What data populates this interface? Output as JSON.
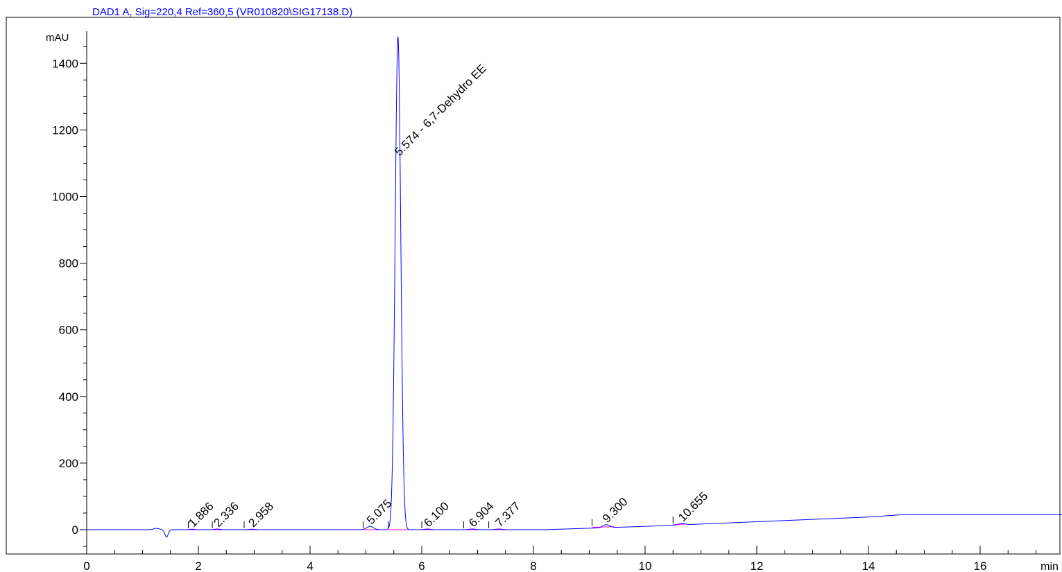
{
  "chart_data": {
    "type": "line",
    "title": "DAD1 A, Sig=220,4 Ref=360,5 (VR010820\\SIG17138.D)",
    "ylabel": "mAU",
    "xlabel": "min",
    "xlim": [
      0,
      17.5
    ],
    "ylim": [
      -65,
      1500
    ],
    "x_ticks": [
      0,
      2,
      4,
      6,
      8,
      10,
      12,
      14,
      16
    ],
    "y_ticks": [
      0,
      200,
      400,
      600,
      800,
      1000,
      1200,
      1400
    ],
    "series": [
      {
        "color": "#0000ff",
        "baseline": [
          [
            0,
            0
          ],
          [
            1.2,
            0
          ],
          [
            8.2,
            0
          ],
          [
            10,
            10
          ],
          [
            12,
            24
          ],
          [
            14,
            38
          ],
          [
            14.6,
            45
          ],
          [
            17.5,
            45
          ]
        ],
        "peaks": [
          {
            "rt": 1.25,
            "height": 4,
            "width": 0.05
          },
          {
            "rt": 1.43,
            "height": -22,
            "width": 0.03
          },
          {
            "rt": 1.886,
            "height": 1.5,
            "width": 0.05
          },
          {
            "rt": 2.336,
            "height": 2,
            "width": 0.05
          },
          {
            "rt": 2.958,
            "height": 1.5,
            "width": 0.05
          },
          {
            "rt": 5.075,
            "height": 10,
            "width": 0.06
          },
          {
            "rt": 5.574,
            "height": 1480,
            "width": 0.05
          },
          {
            "rt": 6.1,
            "height": 2,
            "width": 0.05
          },
          {
            "rt": 6.904,
            "height": 2,
            "width": 0.06
          },
          {
            "rt": 7.377,
            "height": 2,
            "width": 0.06
          },
          {
            "rt": 9.3,
            "height": 9,
            "width": 0.06
          },
          {
            "rt": 10.655,
            "height": 4,
            "width": 0.06
          }
        ]
      }
    ],
    "integration_baselines": {
      "color": "#ff00ff",
      "segments": [
        [
          1.82,
          0,
          2.02,
          0
        ],
        [
          2.25,
          0,
          2.45,
          0
        ],
        [
          2.82,
          0,
          3.1,
          0
        ],
        [
          4.95,
          0,
          5.3,
          0
        ],
        [
          5.4,
          0,
          6.0,
          0
        ],
        [
          6.0,
          0,
          6.3,
          0
        ],
        [
          6.75,
          0,
          7.2,
          0
        ],
        [
          7.2,
          0,
          7.55,
          0
        ],
        [
          9.05,
          7,
          9.45,
          9
        ],
        [
          10.5,
          15,
          10.75,
          17
        ]
      ]
    },
    "peak_labels": [
      {
        "rt": 1.886,
        "text": "1.886"
      },
      {
        "rt": 2.336,
        "text": "2.336"
      },
      {
        "rt": 2.958,
        "text": "2.958"
      },
      {
        "rt": 5.075,
        "text": "5.075"
      },
      {
        "rt": 5.574,
        "text": "5.574 -  6,7-Dehydro EE"
      },
      {
        "rt": 6.1,
        "text": "6.100"
      },
      {
        "rt": 6.904,
        "text": "6.904"
      },
      {
        "rt": 7.377,
        "text": "7.377"
      },
      {
        "rt": 9.3,
        "text": "9.300"
      },
      {
        "rt": 10.655,
        "text": "10.655"
      }
    ],
    "grid": false,
    "legend": "none"
  }
}
